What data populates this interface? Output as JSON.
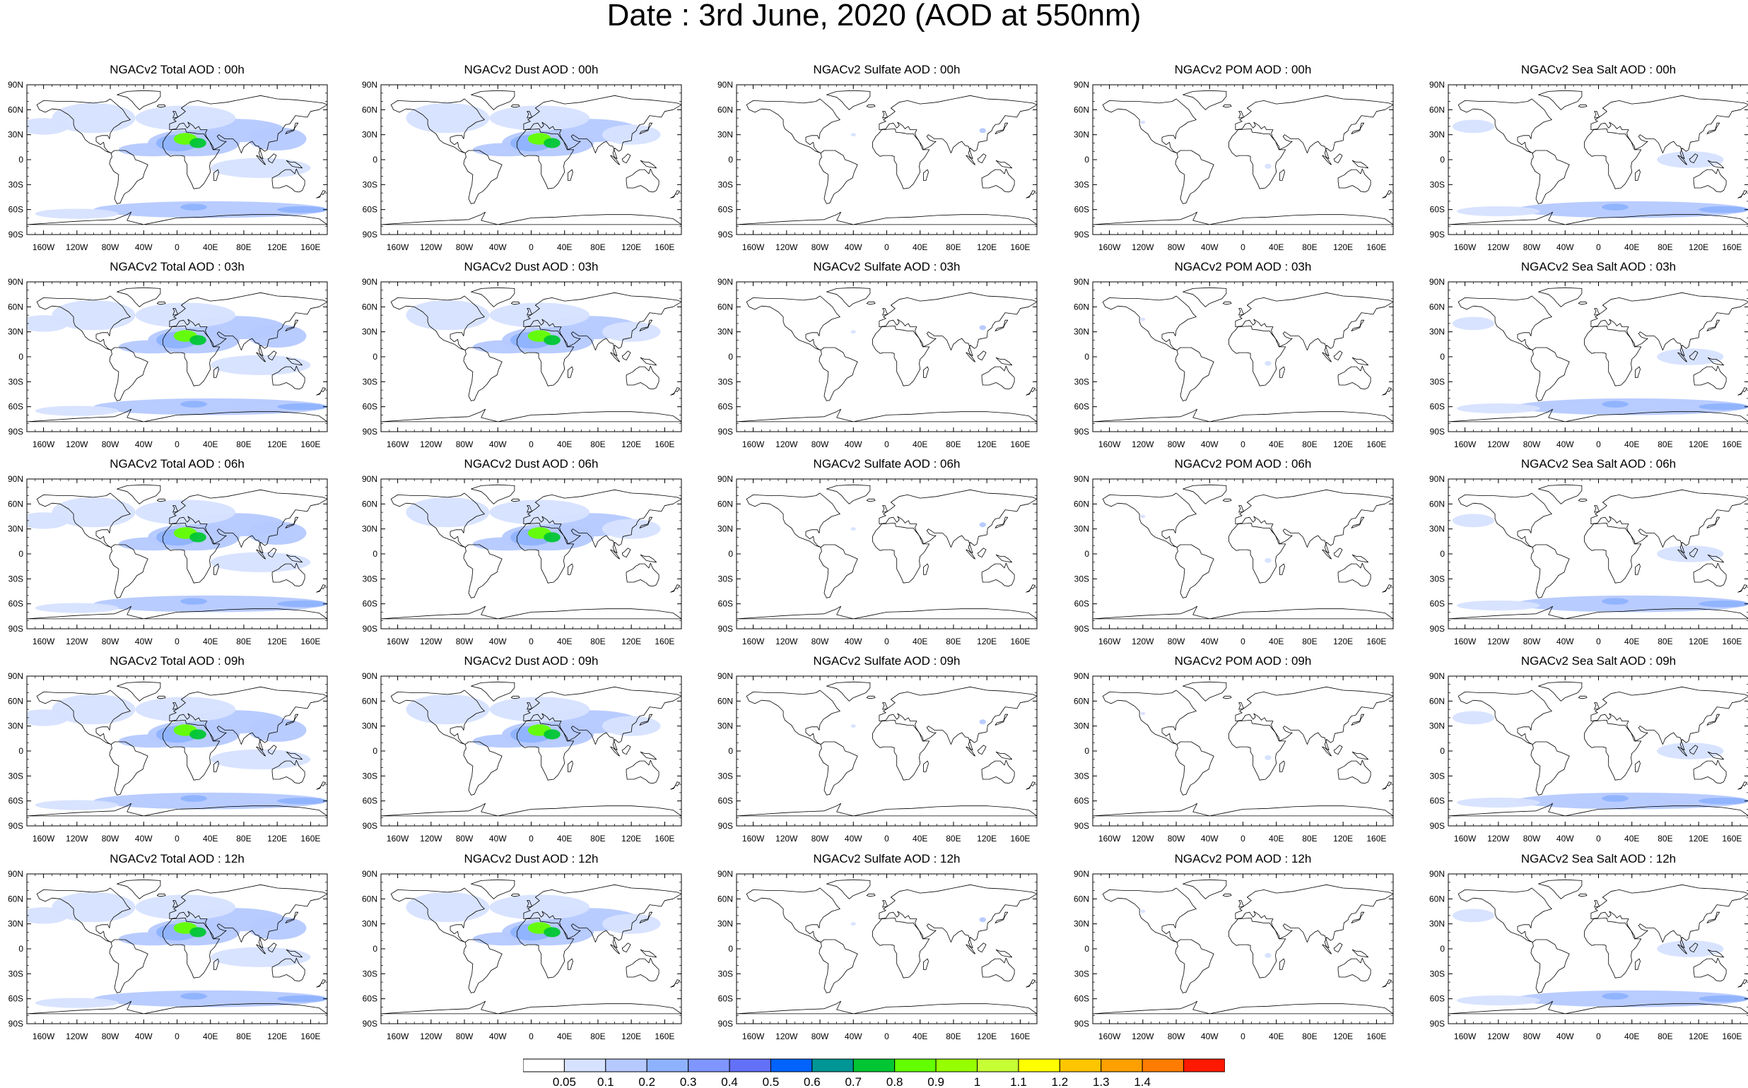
{
  "title": "Date : 3rd June, 2020 (AOD at 550nm)",
  "panel_titles": [
    [
      "NGACv2 Total AOD : 00h",
      "NGACv2 Dust AOD : 00h",
      "NGACv2 Sulfate AOD : 00h",
      "NGACv2 POM AOD : 00h",
      "NGACv2 Sea Salt AOD : 00h"
    ],
    [
      "NGACv2 Total AOD : 03h",
      "NGACv2 Dust AOD : 03h",
      "NGACv2 Sulfate AOD : 03h",
      "NGACv2 POM AOD : 03h",
      "NGACv2 Sea Salt AOD : 03h"
    ],
    [
      "NGACv2 Total AOD : 06h",
      "NGACv2 Dust AOD : 06h",
      "NGACv2 Sulfate AOD : 06h",
      "NGACv2 POM AOD : 06h",
      "NGACv2 Sea Salt AOD : 06h"
    ],
    [
      "NGACv2 Total AOD : 09h",
      "NGACv2 Dust AOD : 09h",
      "NGACv2 Sulfate AOD : 09h",
      "NGACv2 POM AOD : 09h",
      "NGACv2 Sea Salt  AOD : 09h"
    ],
    [
      "NGACv2 Total AOD  : 12h",
      "NGACv2 Dust AOD : 12h",
      "NGACv2 Sulfate AOD : 12h",
      "NGACv2 POM  AOD : 12h",
      "NGACv2 Sea Salt  AOD : 12h"
    ]
  ],
  "lat_ticks": [
    "90N",
    "60N",
    "30N",
    "0",
    "30S",
    "60S",
    "90S"
  ],
  "lon_ticks": [
    "160W",
    "120W",
    "80W",
    "40W",
    "0",
    "40E",
    "80E",
    "120E",
    "160E"
  ],
  "lon_tick_values": [
    -160,
    -120,
    -80,
    -40,
    0,
    40,
    80,
    120,
    160
  ],
  "lat_tick_values": [
    90,
    60,
    30,
    0,
    -30,
    -60,
    -90
  ],
  "colorbar": {
    "labels": [
      "0.05",
      "0.1",
      "0.2",
      "0.3",
      "0.4",
      "0.5",
      "0.6",
      "0.7",
      "0.8",
      "0.9",
      "1",
      "1.1",
      "1.2",
      "1.3",
      "1.4"
    ],
    "colors": [
      "#ffffff",
      "#d6e2ff",
      "#b5c9ff",
      "#8eb2ff",
      "#7f96ff",
      "#6370f8",
      "#0063ff",
      "#009696",
      "#00c633",
      "#63ff00",
      "#96ff00",
      "#c6ff33",
      "#ffff00",
      "#ffc600",
      "#ffa000",
      "#ff7c00",
      "#ff1900"
    ]
  }
}
